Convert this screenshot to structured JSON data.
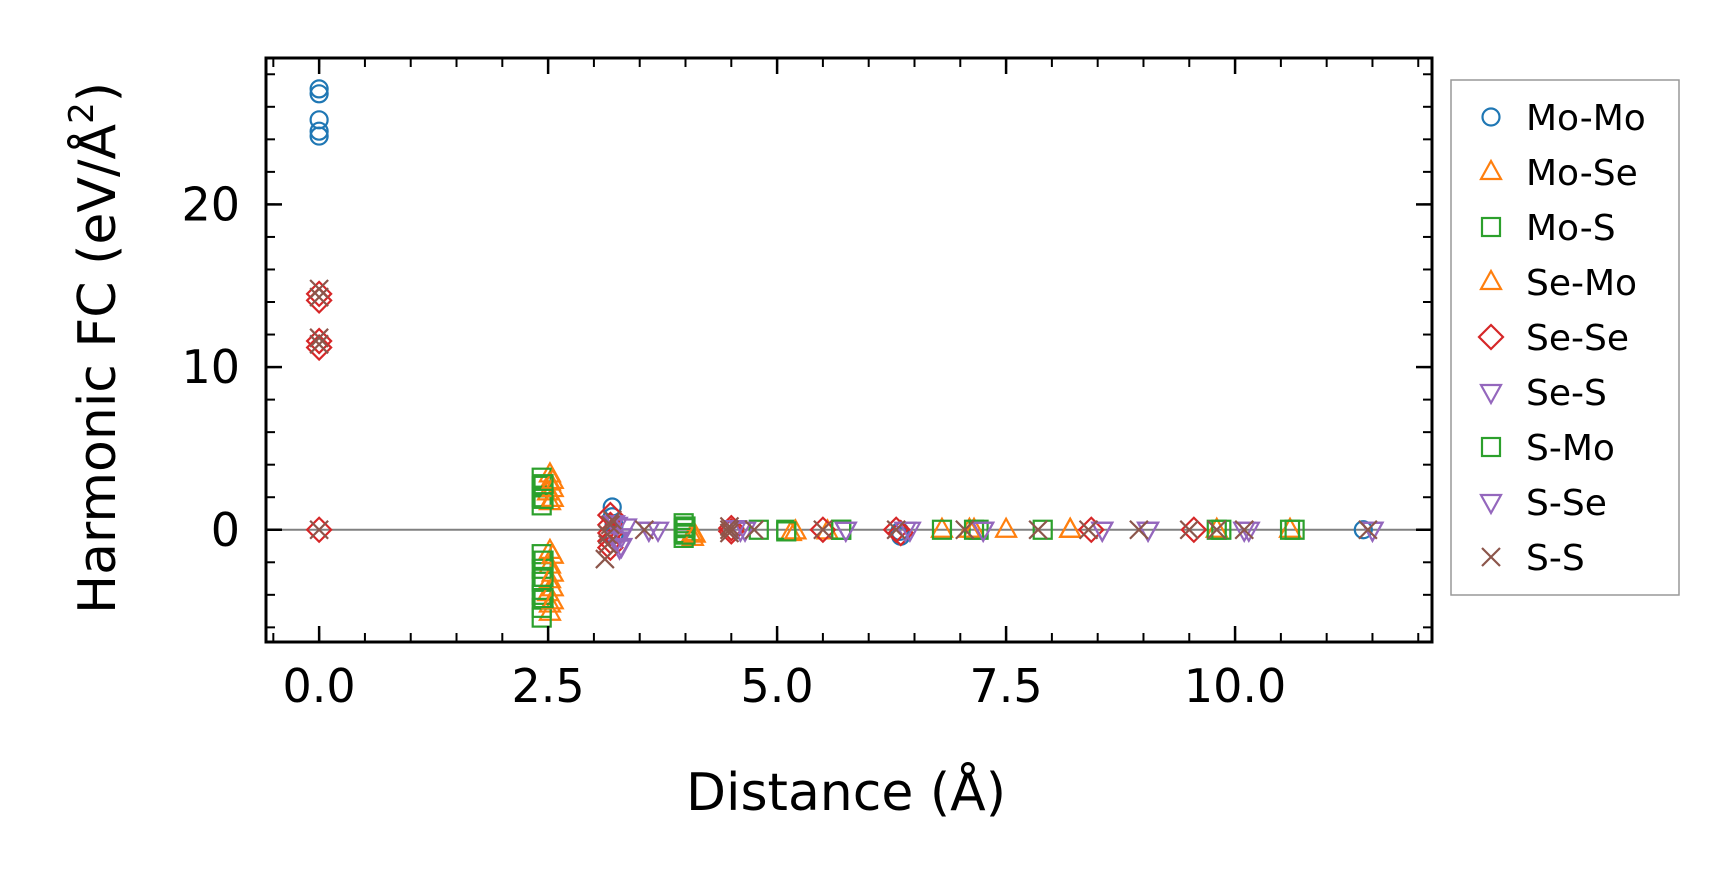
{
  "chart_data": {
    "type": "scatter",
    "title": "",
    "xlabel": "Distance (Å)",
    "ylabel": {
      "main": "Harmonic FC (eV/Å",
      "sup": "2",
      "close": ")"
    },
    "xlim": [
      -0.58,
      12.15
    ],
    "ylim": [
      -6.9,
      29.0
    ],
    "xticks": [
      0.0,
      2.5,
      5.0,
      7.5,
      10.0
    ],
    "xtick_labels": [
      "0.0",
      "2.5",
      "5.0",
      "7.5",
      "10.0"
    ],
    "yticks": [
      0,
      10,
      20
    ],
    "ytick_labels": [
      "0",
      "10",
      "20"
    ],
    "x_minor_step": 0.5,
    "y_minor_step": 2,
    "zero_line": true,
    "grid": false,
    "legend_position": "outside-right",
    "series": [
      {
        "name": "Mo-Mo",
        "marker": "circle",
        "color": "#1f77b4",
        "points": [
          [
            0.0,
            26.8
          ],
          [
            0.0,
            27.1
          ],
          [
            0.0,
            25.2
          ],
          [
            0.0,
            24.5
          ],
          [
            0.0,
            24.2
          ],
          [
            3.2,
            1.4
          ],
          [
            3.2,
            0.8
          ],
          [
            3.22,
            0.3
          ],
          [
            3.22,
            -0.3
          ],
          [
            6.34,
            -0.1
          ],
          [
            6.35,
            -0.4
          ],
          [
            11.4,
            0.0
          ]
        ]
      },
      {
        "name": "Mo-Se",
        "marker": "triangle-up",
        "color": "#ff7f0e",
        "points": [
          [
            2.52,
            3.4
          ],
          [
            2.52,
            2.9
          ],
          [
            2.5,
            2.3
          ],
          [
            2.52,
            1.7
          ],
          [
            2.52,
            -1.3
          ],
          [
            2.52,
            -2.2
          ],
          [
            2.52,
            -3.1
          ],
          [
            2.5,
            -3.9
          ],
          [
            2.52,
            -4.6
          ],
          [
            2.52,
            -5.1
          ],
          [
            4.08,
            -0.2
          ],
          [
            4.08,
            -0.5
          ],
          [
            5.15,
            -0.2
          ],
          [
            5.55,
            -0.1
          ],
          [
            6.8,
            0.0
          ],
          [
            7.1,
            0.0
          ],
          [
            7.5,
            0.0
          ],
          [
            8.2,
            0.0
          ],
          [
            9.8,
            0.0
          ],
          [
            10.6,
            0.0
          ]
        ]
      },
      {
        "name": "Mo-S",
        "marker": "square",
        "color": "#2ca02c",
        "points": [
          [
            2.43,
            3.2
          ],
          [
            2.43,
            2.7
          ],
          [
            2.43,
            2.0
          ],
          [
            2.43,
            1.5
          ],
          [
            2.43,
            -1.5
          ],
          [
            2.43,
            -2.4
          ],
          [
            2.43,
            -3.2
          ],
          [
            2.43,
            -4.0
          ],
          [
            2.43,
            -4.8
          ],
          [
            2.43,
            -5.4
          ],
          [
            3.98,
            0.4
          ],
          [
            3.98,
            0.1
          ],
          [
            3.98,
            -0.2
          ],
          [
            3.98,
            -0.5
          ],
          [
            4.8,
            0.0
          ],
          [
            5.1,
            0.0
          ],
          [
            5.7,
            0.0
          ],
          [
            6.8,
            0.0
          ],
          [
            7.2,
            0.0
          ],
          [
            7.9,
            0.0
          ],
          [
            9.85,
            0.0
          ],
          [
            10.6,
            0.0
          ]
        ]
      },
      {
        "name": "Se-Mo",
        "marker": "triangle-up",
        "color": "#ff7f0e",
        "points": [
          [
            2.55,
            3.0
          ],
          [
            2.55,
            2.5
          ],
          [
            2.55,
            1.9
          ],
          [
            2.55,
            -1.6
          ],
          [
            2.55,
            -2.7
          ],
          [
            2.55,
            -3.6
          ],
          [
            2.55,
            -4.4
          ],
          [
            4.1,
            -0.3
          ],
          [
            5.2,
            -0.1
          ],
          [
            7.15,
            0.0
          ],
          [
            8.2,
            0.0
          ]
        ]
      },
      {
        "name": "Se-Se",
        "marker": "diamond",
        "color": "#d62728",
        "points": [
          [
            0.0,
            14.5
          ],
          [
            0.0,
            14.1
          ],
          [
            0.0,
            11.6
          ],
          [
            0.0,
            11.2
          ],
          [
            0.0,
            0.0
          ],
          [
            3.18,
            0.9
          ],
          [
            3.18,
            0.3
          ],
          [
            3.18,
            -0.2
          ],
          [
            3.18,
            -0.7
          ],
          [
            3.18,
            -1.1
          ],
          [
            4.5,
            0.1
          ],
          [
            4.5,
            -0.1
          ],
          [
            5.5,
            0.0
          ],
          [
            6.3,
            0.0
          ],
          [
            6.35,
            -0.2
          ],
          [
            8.43,
            0.0
          ],
          [
            9.55,
            0.0
          ]
        ]
      },
      {
        "name": "Se-S",
        "marker": "triangle-down",
        "color": "#9467bd",
        "points": [
          [
            3.22,
            0.4
          ],
          [
            3.25,
            -0.6
          ],
          [
            3.28,
            -1.1
          ],
          [
            3.35,
            0.2
          ],
          [
            3.6,
            0.0
          ],
          [
            3.7,
            0.0
          ],
          [
            4.55,
            0.1
          ],
          [
            4.6,
            0.0
          ],
          [
            5.75,
            0.0
          ],
          [
            6.4,
            0.0
          ],
          [
            7.25,
            0.0
          ],
          [
            8.55,
            0.0
          ],
          [
            9.05,
            0.0
          ],
          [
            10.1,
            0.0
          ],
          [
            11.5,
            0.0
          ]
        ]
      },
      {
        "name": "S-Mo",
        "marker": "square",
        "color": "#2ca02c",
        "points": [
          [
            2.45,
            2.8
          ],
          [
            2.45,
            1.9
          ],
          [
            2.45,
            -1.9
          ],
          [
            2.45,
            -2.9
          ],
          [
            2.45,
            -4.2
          ],
          [
            4.0,
            0.2
          ],
          [
            4.0,
            -0.3
          ],
          [
            5.1,
            -0.1
          ],
          [
            5.7,
            0.0
          ],
          [
            7.15,
            0.0
          ],
          [
            9.8,
            0.0
          ],
          [
            10.65,
            0.0
          ]
        ]
      },
      {
        "name": "S-Se",
        "marker": "triangle-down",
        "color": "#9467bd",
        "points": [
          [
            3.25,
            0.3
          ],
          [
            3.3,
            -0.4
          ],
          [
            3.3,
            -1.0
          ],
          [
            3.6,
            0.0
          ],
          [
            4.65,
            0.0
          ],
          [
            5.75,
            0.0
          ],
          [
            6.45,
            0.0
          ],
          [
            7.25,
            0.0
          ],
          [
            8.55,
            0.0
          ],
          [
            9.05,
            0.0
          ],
          [
            10.15,
            0.0
          ],
          [
            11.5,
            0.0
          ]
        ]
      },
      {
        "name": "S-S",
        "marker": "x",
        "color": "#8c564b",
        "points": [
          [
            0.0,
            14.8
          ],
          [
            0.0,
            14.3
          ],
          [
            0.0,
            11.8
          ],
          [
            0.0,
            11.4
          ],
          [
            0.0,
            0.0
          ],
          [
            3.12,
            -1.8
          ],
          [
            3.15,
            -0.9
          ],
          [
            3.15,
            -0.3
          ],
          [
            3.18,
            0.3
          ],
          [
            3.2,
            0.6
          ],
          [
            3.55,
            0.0
          ],
          [
            4.48,
            0.2
          ],
          [
            4.48,
            0.0
          ],
          [
            4.48,
            -0.2
          ],
          [
            4.75,
            0.0
          ],
          [
            5.5,
            0.0
          ],
          [
            6.3,
            0.0
          ],
          [
            7.05,
            0.0
          ],
          [
            7.85,
            0.0
          ],
          [
            8.4,
            0.0
          ],
          [
            8.95,
            0.0
          ],
          [
            9.5,
            0.0
          ],
          [
            9.8,
            0.0
          ],
          [
            10.1,
            0.0
          ],
          [
            11.45,
            0.0
          ]
        ]
      }
    ]
  }
}
